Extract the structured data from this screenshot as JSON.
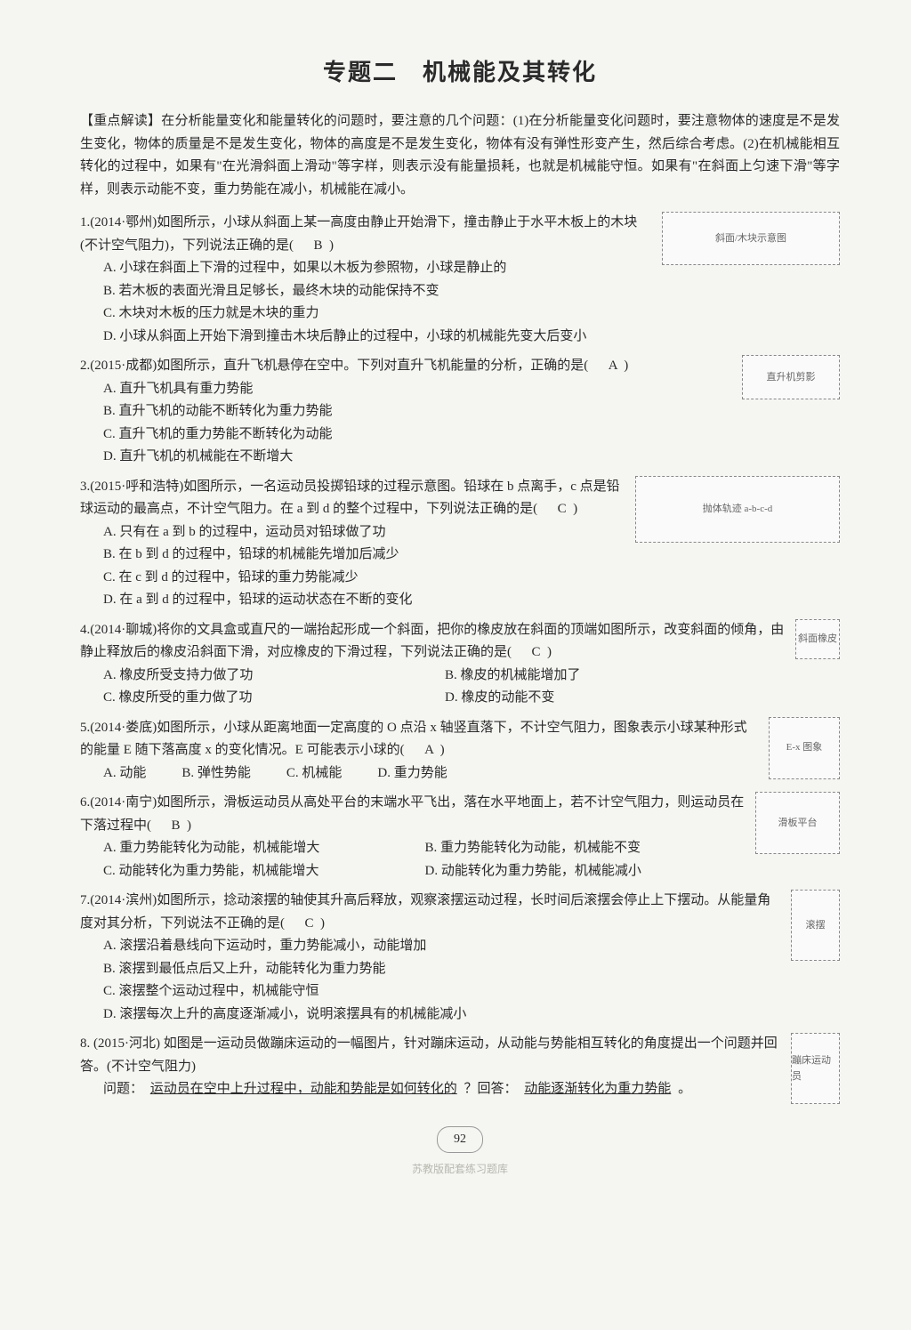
{
  "title": "专题二　机械能及其转化",
  "intro": "【重点解读】在分析能量变化和能量转化的问题时，要注意的几个问题：(1)在分析能量变化问题时，要注意物体的速度是不是发生变化，物体的质量是不是发生变化，物体的高度是不是发生变化，物体有没有弹性形变产生，然后综合考虑。(2)在机械能相互转化的过程中，如果有\"在光滑斜面上滑动\"等字样，则表示没有能量损耗，也就是机械能守恒。如果有\"在斜面上匀速下滑\"等字样，则表示动能不变，重力势能在减小，机械能在减小。",
  "questions": [
    {
      "num": "1.",
      "source": "(2014·鄂州)",
      "stem": "如图所示，小球从斜面上某一高度由静止开始滑下，撞击静止于水平木板上的木块(不计空气阻力)，下列说法正确的是(",
      "answer": "B",
      "close": ")",
      "options": [
        "A. 小球在斜面上下滑的过程中，如果以木板为参照物，小球是静止的",
        "B. 若木板的表面光滑且足够长，最终木块的动能保持不变",
        "C. 木块对木板的压力就是木块的重力",
        "D. 小球从斜面上开始下滑到撞击木块后静止的过程中，小球的机械能先变大后变小"
      ],
      "fig": "斜面/木块示意图",
      "fig_class": "fig1"
    },
    {
      "num": "2.",
      "source": "(2015·成都)",
      "stem": "如图所示，直升飞机悬停在空中。下列对直升飞机能量的分析，正确的是(",
      "answer": "A",
      "close": ")",
      "options": [
        "A. 直升飞机具有重力势能",
        "B. 直升飞机的动能不断转化为重力势能",
        "C. 直升飞机的重力势能不断转化为动能",
        "D. 直升飞机的机械能在不断增大"
      ],
      "fig": "直升机剪影",
      "fig_class": "fig2"
    },
    {
      "num": "3.",
      "source": "(2015·呼和浩特)",
      "stem": "如图所示，一名运动员投掷铅球的过程示意图。铅球在 b 点离手，c 点是铅球运动的最高点，不计空气阻力。在 a 到 d 的整个过程中，下列说法正确的是(",
      "answer": "C",
      "close": ")",
      "options": [
        "A. 只有在 a 到 b 的过程中，运动员对铅球做了功",
        "B. 在 b 到 d 的过程中，铅球的机械能先增加后减少",
        "C. 在 c 到 d 的过程中，铅球的重力势能减少",
        "D. 在 a 到 d 的过程中，铅球的运动状态在不断的变化"
      ],
      "fig": "抛体轨迹 a-b-c-d",
      "fig_class": "fig3"
    },
    {
      "num": "4.",
      "source": "(2014·聊城)",
      "stem": "将你的文具盒或直尺的一端抬起形成一个斜面，把你的橡皮放在斜面的顶端如图所示，改变斜面的倾角，由静止释放后的橡皮沿斜面下滑，对应橡皮的下滑过程，下列说法正确的是(",
      "answer": "C",
      "close": ")",
      "options_half": [
        "A. 橡皮所受支持力做了功",
        "B. 橡皮的机械能增加了",
        "C. 橡皮所受的重力做了功",
        "D. 橡皮的动能不变"
      ],
      "fig": "斜面橡皮",
      "fig_class": "fig4"
    },
    {
      "num": "5.",
      "source": "(2014·娄底)",
      "stem": "如图所示，小球从距离地面一定高度的 O 点沿 x 轴竖直落下，不计空气阻力，图象表示小球某种形式的能量 E 随下落高度 x 的变化情况。E 可能表示小球的(",
      "answer": "A",
      "close": ")",
      "options_inline": [
        "A. 动能",
        "B. 弹性势能",
        "C. 机械能",
        "D. 重力势能"
      ],
      "fig": "E-x 图象",
      "fig_class": "fig5"
    },
    {
      "num": "6.",
      "source": "(2014·南宁)",
      "stem": "如图所示，滑板运动员从高处平台的末端水平飞出，落在水平地面上，若不计空气阻力，则运动员在下落过程中(",
      "answer": "B",
      "close": ")",
      "options_half": [
        "A. 重力势能转化为动能，机械能增大",
        "B. 重力势能转化为动能，机械能不变",
        "C. 动能转化为重力势能，机械能增大",
        "D. 动能转化为重力势能，机械能减小"
      ],
      "fig": "滑板平台",
      "fig_class": "fig6"
    },
    {
      "num": "7.",
      "source": "(2014·滨州)",
      "stem": "如图所示，捻动滚摆的轴使其升高后释放，观察滚摆运动过程，长时间后滚摆会停止上下摆动。从能量角度对其分析，下列说法不正确的是(",
      "answer": "C",
      "close": ")",
      "options": [
        "A. 滚摆沿着悬线向下运动时，重力势能减小，动能增加",
        "B. 滚摆到最低点后又上升，动能转化为重力势能",
        "C. 滚摆整个运动过程中，机械能守恒",
        "D. 滚摆每次上升的高度逐渐减小，说明滚摆具有的机械能减小"
      ],
      "fig": "滚摆",
      "fig_class": "fig7"
    }
  ],
  "q8": {
    "num": "8.",
    "source": "(2015·河北)",
    "stem": "如图是一运动员做蹦床运动的一幅图片，针对蹦床运动，从动能与势能相互转化的角度提出一个问题并回答。(不计空气阻力)",
    "q_label": "问题：",
    "q_fill": "运动员在空中上升过程中，动能和势能是如何转化的",
    "a_label": "？回答：",
    "a_fill": "动能逐渐转化为重力势能",
    "period": "。",
    "fig": "蹦床运动员",
    "fig_class": "fig8"
  },
  "page_num": "92",
  "watermark": "苏教版配套练习题库"
}
